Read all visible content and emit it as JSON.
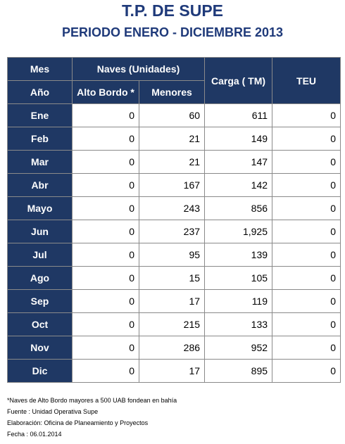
{
  "title": "T.P. DE SUPE",
  "subtitle": "PERIODO ENERO - DICIEMBRE 2013",
  "headers": {
    "mes": "Mes",
    "anio": "Año",
    "naves": "Naves (Unidades)",
    "alto_bordo": "Alto Bordo *",
    "menores": "Menores",
    "carga": "Carga ( TM)",
    "teu": "TEU"
  },
  "rows": [
    {
      "mes": "Ene",
      "alto_bordo": "0",
      "menores": "60",
      "carga": "611",
      "teu": "0"
    },
    {
      "mes": "Feb",
      "alto_bordo": "0",
      "menores": "21",
      "carga": "149",
      "teu": "0"
    },
    {
      "mes": "Mar",
      "alto_bordo": "0",
      "menores": "21",
      "carga": "147",
      "teu": "0"
    },
    {
      "mes": "Abr",
      "alto_bordo": "0",
      "menores": "167",
      "carga": "142",
      "teu": "0"
    },
    {
      "mes": "Mayo",
      "alto_bordo": "0",
      "menores": "243",
      "carga": "856",
      "teu": "0"
    },
    {
      "mes": "Jun",
      "alto_bordo": "0",
      "menores": "237",
      "carga": "1,925",
      "teu": "0"
    },
    {
      "mes": "Jul",
      "alto_bordo": "0",
      "menores": "95",
      "carga": "139",
      "teu": "0"
    },
    {
      "mes": "Ago",
      "alto_bordo": "0",
      "menores": "15",
      "carga": "105",
      "teu": "0"
    },
    {
      "mes": "Sep",
      "alto_bordo": "0",
      "menores": "17",
      "carga": "119",
      "teu": "0"
    },
    {
      "mes": "Oct",
      "alto_bordo": "0",
      "menores": "215",
      "carga": "133",
      "teu": "0"
    },
    {
      "mes": "Nov",
      "alto_bordo": "0",
      "menores": "286",
      "carga": "952",
      "teu": "0"
    },
    {
      "mes": "Dic",
      "alto_bordo": "0",
      "menores": "17",
      "carga": "895",
      "teu": "0"
    }
  ],
  "notes": [
    "*Naves de Alto Bordo mayores a 500 UAB fondean en bahía",
    "Fuente : Unidad Operativa Supe",
    "Elaboración: Oficina de Planeamiento y Proyectos",
    "Fecha : 06.01.2014"
  ]
}
